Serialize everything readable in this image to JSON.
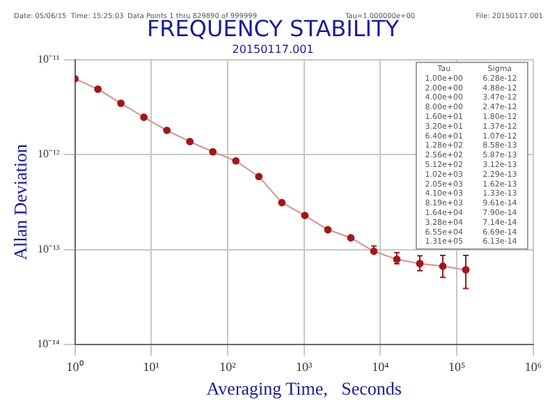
{
  "chart_data": {
    "type": "line",
    "title": "FREQUENCY STABILITY",
    "subtitle": "20150117.001",
    "xlabel": "Averaging Time,   Seconds",
    "ylabel": "Allan Deviation",
    "annotations": [
      "Date: 05/06/15  Time: 15:25:03",
      "Data Points 1 thru 829890 of 999999",
      "Tau=1.000000e+00",
      "File: 20150117.001",
      "Tau",
      "Sigma",
      "1.00e+00",
      "6.28e-12",
      "2.00e+00",
      "4.88e-12",
      "4.00e+00",
      "3.47e-12",
      "8.00e+00",
      "2.47e-12",
      "1.60e+01",
      "1.80e-12",
      "3.20e+01",
      "1.37e-12",
      "6.40e+01",
      "1.07e-12",
      "1.28e+02",
      "8.58e-13",
      "2.56e+02",
      "5.87e-13",
      "5.12e+02",
      "3.12e-13",
      "1.02e+03",
      "2.29e-13",
      "2.05e+03",
      "1.62e-13",
      "4.10e+03",
      "1.33e-13",
      "8.19e+03",
      "9.61e-14",
      "1.64e+04",
      "7.90e-14",
      "3.28e+04",
      "7.14e-14",
      "6.55e+04",
      "6.69e-14",
      "1.31e+05",
      "6.13e-14"
    ],
    "x": [
      1,
      2,
      4,
      8,
      16,
      32,
      64,
      128,
      256,
      512,
      1024,
      2048,
      4096,
      8192,
      16384,
      32768,
      65536,
      131072
    ],
    "series": [
      {
        "color": "#a01818",
        "values": [
          6.28e-12,
          4.88e-12,
          3.47e-12,
          2.47e-12,
          1.8e-12,
          1.37e-12,
          1.07e-12,
          8.58e-13,
          5.87e-13,
          3.12e-13,
          2.29e-13,
          1.62e-13,
          1.33e-13,
          9.61e-14,
          7.9e-14,
          7.14e-14,
          6.69e-14,
          6.13e-14
        ],
        "errors": [
          null,
          null,
          null,
          null,
          null,
          null,
          null,
          null,
          null,
          null,
          null,
          null,
          null,
          [
            9.3e-14,
            1.09e-13
          ],
          [
            7.1e-14,
            9.3e-14
          ],
          [
            6e-14,
            8.6e-14
          ],
          [
            5.1e-14,
            8.7e-14
          ],
          [
            3.9e-14,
            8.7e-14
          ]
        ]
      }
    ],
    "log": "xy",
    "marker": "circle",
    "line_style": "solid",
    "grid": true,
    "xlim": [
      1,
      1000000
    ],
    "xticks": [
      {
        "value": 1,
        "label": "10⁰"
      },
      {
        "value": 10,
        "label": "10¹"
      },
      {
        "value": 100,
        "label": "10²"
      },
      {
        "value": 1000,
        "label": "10³"
      },
      {
        "value": 10000,
        "label": "10⁴"
      },
      {
        "value": 100000,
        "label": "10⁵"
      },
      {
        "value": 1000000,
        "label": "10⁶"
      }
    ],
    "ylim": [
      1e-14,
      1e-11
    ],
    "yticks": [
      {
        "value": 1e-14,
        "label": "10⁻¹⁴"
      },
      {
        "value": 1e-13,
        "label": "10⁻¹³"
      },
      {
        "value": 1e-12,
        "label": "10⁻¹²"
      },
      {
        "value": 1e-11,
        "label": "10⁻¹¹"
      }
    ]
  }
}
